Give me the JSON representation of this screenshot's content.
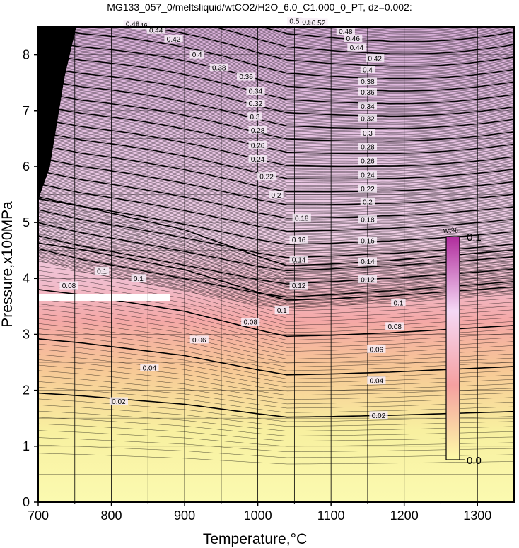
{
  "chart_data": {
    "type": "heatmap",
    "title": "MG133_057_0/meltsliquid/wtCO2/H2O_6.0_C1.000_0_PT, dz=0.002:",
    "xlabel": "Temperature,°C",
    "ylabel": "Pressure,x100MPa",
    "xlim": [
      700,
      1350
    ],
    "ylim": [
      0,
      8.5
    ],
    "x_ticks": [
      700,
      800,
      900,
      1000,
      1100,
      1200,
      1300
    ],
    "y_ticks": [
      0,
      1,
      2,
      3,
      4,
      5,
      6,
      7,
      8
    ],
    "grid": true,
    "colorbar": {
      "unit": "wt%",
      "min_label": "0.0",
      "max_label": "0.1",
      "range": [
        0.0,
        0.1
      ],
      "colors": [
        "#fdfba8",
        "#f5a0a0",
        "#f5d8f5",
        "#b02c9c"
      ]
    },
    "contour_interval": 0.002,
    "major_contour_interval": 0.02,
    "major_contour_levels": [
      0.02,
      0.04,
      0.06,
      0.08,
      0.1,
      0.12,
      0.14,
      0.16,
      0.18,
      0.2,
      0.22,
      0.24,
      0.26,
      0.28,
      0.3,
      0.32,
      0.34,
      0.36,
      0.38,
      0.4,
      0.42,
      0.44,
      0.46,
      0.48,
      0.5,
      0.52
    ],
    "contour_profile": {
      "temperature": [
        700,
        760,
        900,
        1000,
        1040,
        1100,
        1170,
        1175,
        1350
      ],
      "pressure_of_0.02": [
        1.95,
        1.9,
        1.75,
        1.58,
        1.52,
        1.53,
        1.55,
        1.55,
        1.62
      ],
      "pressure_of_0.1": [
        4.3,
        4.1,
        3.75,
        3.5,
        3.43,
        3.48,
        3.55,
        3.55,
        3.72
      ]
    },
    "contour_labels": [
      {
        "text": "0.02",
        "T": 810,
        "P": 1.8
      },
      {
        "text": "0.02",
        "T": 1165,
        "P": 1.55
      },
      {
        "text": "0.04",
        "T": 852,
        "P": 2.4
      },
      {
        "text": "0.04",
        "T": 1162,
        "P": 2.17
      },
      {
        "text": "0.06",
        "T": 920,
        "P": 2.9
      },
      {
        "text": "0.06",
        "T": 1162,
        "P": 2.73
      },
      {
        "text": "0.08",
        "T": 990,
        "P": 3.22
      },
      {
        "text": "0.08",
        "T": 1187,
        "P": 3.14
      },
      {
        "text": "0.08",
        "T": 742,
        "P": 3.87
      },
      {
        "text": "0.1",
        "T": 1033,
        "P": 3.43
      },
      {
        "text": "0.1",
        "T": 1192,
        "P": 3.56
      },
      {
        "text": "0.1",
        "T": 787,
        "P": 4.13
      },
      {
        "text": "0.1",
        "T": 837,
        "P": 4.0
      },
      {
        "text": "0.12",
        "T": 1056,
        "P": 3.87
      },
      {
        "text": "0.12",
        "T": 1150,
        "P": 3.98
      },
      {
        "text": "0.14",
        "T": 1056,
        "P": 4.33
      },
      {
        "text": "0.14",
        "T": 1150,
        "P": 4.3
      },
      {
        "text": "0.16",
        "T": 1056,
        "P": 4.69
      },
      {
        "text": "0.16",
        "T": 1150,
        "P": 4.67
      },
      {
        "text": "0.18",
        "T": 1060,
        "P": 5.08
      },
      {
        "text": "0.18",
        "T": 1150,
        "P": 5.05
      },
      {
        "text": "0.2",
        "T": 1025,
        "P": 5.49
      },
      {
        "text": "0.2",
        "T": 1150,
        "P": 5.37
      },
      {
        "text": "0.22",
        "T": 1012,
        "P": 5.82
      },
      {
        "text": "0.22",
        "T": 1150,
        "P": 5.6
      },
      {
        "text": "0.24",
        "T": 1000,
        "P": 6.13
      },
      {
        "text": "0.24",
        "T": 1150,
        "P": 5.85
      },
      {
        "text": "0.26",
        "T": 1000,
        "P": 6.38
      },
      {
        "text": "0.26",
        "T": 1150,
        "P": 6.1
      },
      {
        "text": "0.28",
        "T": 1000,
        "P": 6.65
      },
      {
        "text": "0.28",
        "T": 1150,
        "P": 6.35
      },
      {
        "text": "0.3",
        "T": 996,
        "P": 6.89
      },
      {
        "text": "0.3",
        "T": 1150,
        "P": 6.6
      },
      {
        "text": "0.32",
        "T": 997,
        "P": 7.13
      },
      {
        "text": "0.32",
        "T": 1150,
        "P": 6.86
      },
      {
        "text": "0.34",
        "T": 997,
        "P": 7.35
      },
      {
        "text": "0.34",
        "T": 1150,
        "P": 7.08
      },
      {
        "text": "0.36",
        "T": 984,
        "P": 7.61
      },
      {
        "text": "0.36",
        "T": 1150,
        "P": 7.33
      },
      {
        "text": "0.38",
        "T": 947,
        "P": 7.77
      },
      {
        "text": "0.38",
        "T": 1150,
        "P": 7.52
      },
      {
        "text": "0.4",
        "T": 917,
        "P": 8.0
      },
      {
        "text": "0.4",
        "T": 1150,
        "P": 7.73
      },
      {
        "text": "0.42",
        "T": 885,
        "P": 8.28
      },
      {
        "text": "0.42",
        "T": 1160,
        "P": 7.93
      },
      {
        "text": "0.44",
        "T": 861,
        "P": 8.44
      },
      {
        "text": "0.44",
        "T": 1135,
        "P": 8.13
      },
      {
        "text": "0.46",
        "T": 840,
        "P": 8.52
      },
      {
        "text": "0.46",
        "T": 1130,
        "P": 8.29
      },
      {
        "text": "0.48",
        "T": 829,
        "P": 8.55
      },
      {
        "text": "0.48",
        "T": 1120,
        "P": 8.42
      },
      {
        "text": "0.5",
        "T": 1050,
        "P": 8.6
      },
      {
        "text": "0.52",
        "T": 1070,
        "P": 8.58
      },
      {
        "text": "0.52",
        "T": 1083,
        "P": 8.57
      }
    ]
  }
}
